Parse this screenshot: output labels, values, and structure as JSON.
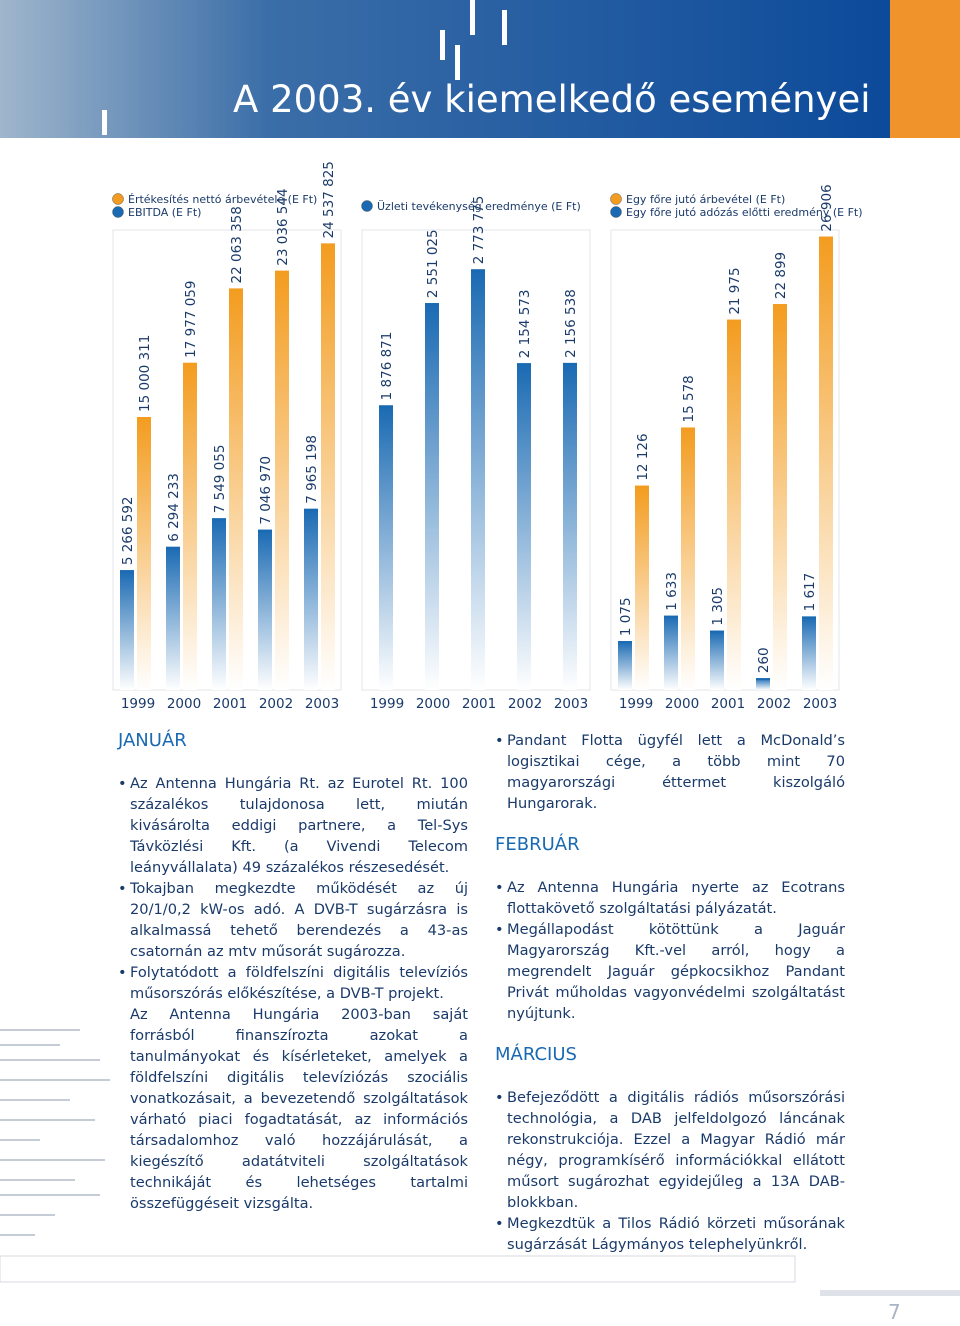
{
  "header": {
    "title": "A 2003. év kiemelkedő eseményei"
  },
  "chart_data": [
    {
      "type": "bar",
      "categories": [
        "1999",
        "2000",
        "2001",
        "2002",
        "2003"
      ],
      "ylim": [
        0,
        25000000
      ],
      "y2lim": [
        0,
        20000000
      ],
      "series": [
        {
          "name": "Értékesítés nettó árbevétele (E Ft)",
          "color": "#f39c1f",
          "axis": "y",
          "values": [
            15000311,
            17977059,
            22063358,
            23036544,
            24537825
          ],
          "value_labels": [
            "15 000 311",
            "17 977 059",
            "22 063 358",
            "23 036 544",
            "24 537 825"
          ]
        },
        {
          "name": "EBITDA (E Ft)",
          "color": "#1a6ab3",
          "axis": "y2",
          "values": [
            5266592,
            6294233,
            7549055,
            7046970,
            7965198
          ],
          "value_labels": [
            "5 266 592",
            "6 294 233",
            "7 549 055",
            "7 046 970",
            "7 965 198"
          ]
        }
      ]
    },
    {
      "type": "bar",
      "categories": [
        "1999",
        "2000",
        "2001",
        "2002",
        "2003"
      ],
      "ylim": [
        0,
        3000000
      ],
      "series": [
        {
          "name": "Üzleti tevékenység eredménye (E Ft)",
          "color": "#1a6ab3",
          "axis": "y",
          "values": [
            1876871,
            2551025,
            2773775,
            2154573,
            2156538
          ],
          "value_labels": [
            "1 876 871",
            "2 551 025",
            "2 773 775",
            "2 154 573",
            "2 156 538"
          ]
        }
      ]
    },
    {
      "type": "bar",
      "categories": [
        "1999",
        "2000",
        "2001",
        "2002",
        "2003"
      ],
      "ylim": [
        0,
        27000
      ],
      "y2lim": [
        0,
        10000
      ],
      "series": [
        {
          "name": "Egy főre jutó árbevétel (E Ft)",
          "color": "#f39c1f",
          "axis": "y",
          "values": [
            12126,
            15578,
            21975,
            22899,
            26906
          ],
          "value_labels": [
            "12 126",
            "15 578",
            "21 975",
            "22 899",
            "26 906"
          ]
        },
        {
          "name": "Egy főre jutó adózás előtti eredmény (E Ft)",
          "color": "#1a6ab3",
          "axis": "y2",
          "values": [
            1075,
            1633,
            1305,
            260,
            1617
          ],
          "value_labels": [
            "1 075",
            "1 633",
            "1 305",
            "260",
            "1 617"
          ]
        }
      ]
    }
  ],
  "sections": [
    {
      "heading": "JANUÁR",
      "blocks": [
        {
          "bullet": "Az Antenna Hungária Rt. az Eurotel Rt. 100 százalékos tulajdonosa lett, miután kivásárolta eddigi partnere, a Tel-Sys Távközlési Kft. (a Vivendi Telecom leányvállalata) 49 százalékos részesedését."
        },
        {
          "bullet": "Tokajban megkezdte működését az új 20/1/0,2 kW-os adó. A DVB-T sugárzásra is alkalmassá tehető berendezés a 43-as csatornán az mtv műsorát sugározza."
        },
        {
          "bullet": "Folytatódott a földfelszíni digitális televíziós műsorszórás előkészítése, a DVB-T projekt."
        },
        {
          "paragraph": "Az Antenna Hungária 2003-ban saját forrásból finanszírozta azokat a tanulmányokat és kísérleteket, amelyek a földfelszíni digitális televíziózás szociális vonatkozásait, a bevezetendő szolgáltatások várható piaci fogadtatását, az információs társadalomhoz való hozzájárulását, a kiegészítő adatátviteli szolgáltatások technikáját és lehetséges tartalmi összefüggéseit vizsgálta."
        },
        {
          "bullet": "Pandant Flotta ügyfél lett a McDonald’s logisztikai cége, a több mint 70 magyarországi éttermet kiszolgáló Hungarorak."
        }
      ]
    },
    {
      "heading": "FEBRUÁR",
      "blocks": [
        {
          "bullet": "Az Antenna Hungária nyerte az Ecotrans flottakövető szolgáltatási pályázatát."
        },
        {
          "bullet": "Megállapodást kötöttünk a Jaguár Magyarország Kft.-vel arról, hogy a megrendelt Jaguár gépkocsikhoz Pandant Privát műholdas vagyonvédelmi szolgáltatást nyújtunk."
        }
      ]
    },
    {
      "heading": "MÁRCIUS",
      "blocks": [
        {
          "bullet": "Befejeződött a digitális rádiós műsorszórási technológia, a DAB jelfeldolgozó láncának rekonstrukciója. Ezzel a Magyar Rádió már négy, programkísérő információkkal ellátott műsort sugározhat egyidejűleg a 13A DAB-blokkban."
        },
        {
          "bullet": "Megkezdtük a Tilos Rádió körzeti műsorának sugárzását Lágymányos telephelyünkről."
        }
      ]
    }
  ],
  "page_number": "7"
}
